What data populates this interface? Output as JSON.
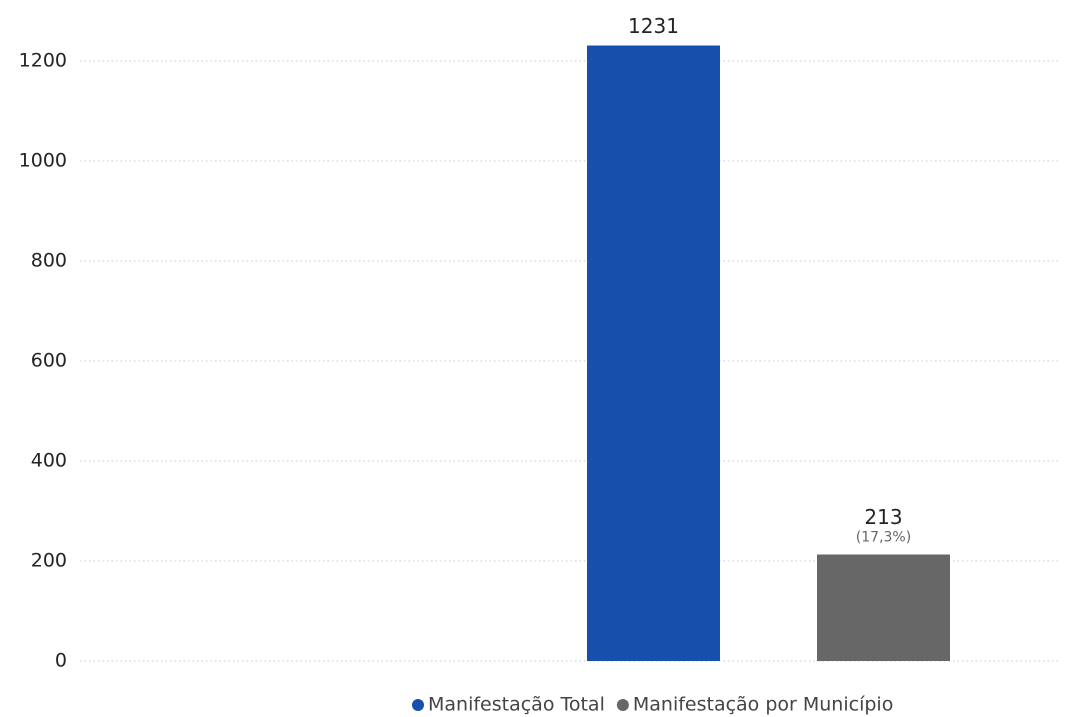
{
  "chart_data": {
    "type": "bar",
    "categories": [
      null
    ],
    "series": [
      {
        "name": "Manifestação Total",
        "color": "#1750ac",
        "values": [
          1231
        ]
      },
      {
        "name": "Manifestação por Município",
        "color": "#676767",
        "values": [
          213
        ],
        "share_labels": [
          "(17,3%)"
        ]
      }
    ],
    "ylim": [
      0,
      1250
    ],
    "yticks": [
      0,
      200,
      400,
      600,
      800,
      1000,
      1200
    ],
    "grid": true,
    "legend": "bottom"
  }
}
